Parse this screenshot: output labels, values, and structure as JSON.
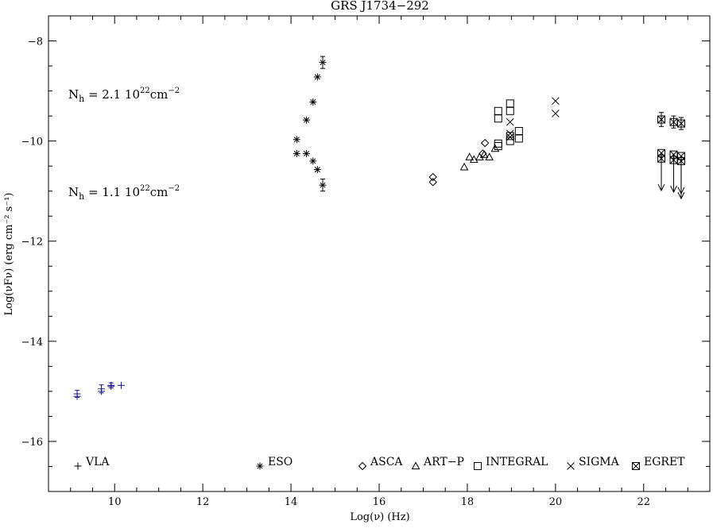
{
  "chart_data": {
    "type": "scatter",
    "title": "GRS J1734−292",
    "xlabel": "Log(ν)  (Hz)",
    "ylabel": "Log(νFν)  (erg cm⁻² s⁻¹)",
    "xlim": [
      8.5,
      23.5
    ],
    "ylim": [
      -17.0,
      -7.5
    ],
    "x_ticks": [
      10,
      12,
      14,
      16,
      18,
      20,
      22
    ],
    "x_tick_labels": [
      "10",
      "12",
      "14",
      "16",
      "18",
      "20",
      "22"
    ],
    "y_ticks": [
      -16,
      -14,
      -12,
      -10,
      -8
    ],
    "y_tick_labels": [
      "−16",
      "−14",
      "−12",
      "−10",
      "−8"
    ],
    "annotations": [
      {
        "text_main": "N",
        "text_sub": "h",
        "text_rest": " = 2.1  10",
        "text_sup": "22",
        "text_unit": "cm",
        "text_unit_sup": "−2",
        "x": 8.95,
        "y": -9.15
      },
      {
        "text_main": "N",
        "text_sub": "h",
        "text_rest": " = 1.1  10",
        "text_sup": "22",
        "text_unit": "cm",
        "text_unit_sup": "−2",
        "x": 8.95,
        "y": -11.1
      }
    ],
    "legend": [
      {
        "label": "VLA",
        "marker": "plus"
      },
      {
        "label": "ESO",
        "marker": "asterisk"
      },
      {
        "label": "ASCA",
        "marker": "diamond"
      },
      {
        "label": "ART−P",
        "marker": "triangle"
      },
      {
        "label": "INTEGRAL",
        "marker": "square"
      },
      {
        "label": "SIGMA",
        "marker": "cross"
      },
      {
        "label": "EGRET",
        "marker": "boxcross"
      }
    ],
    "legend_placement": "bottom",
    "series": [
      {
        "name": "VLA",
        "marker": "plus",
        "color": "#1a1a8a",
        "points": [
          {
            "x": 9.15,
            "y": -15.05,
            "yerr": 0.07
          },
          {
            "x": 9.15,
            "y": -15.1
          },
          {
            "x": 9.7,
            "y": -14.95,
            "yerr": 0.08
          },
          {
            "x": 9.7,
            "y": -15.0
          },
          {
            "x": 9.92,
            "y": -14.88,
            "yerr": 0.05
          },
          {
            "x": 9.92,
            "y": -14.9
          },
          {
            "x": 10.15,
            "y": -14.88
          }
        ]
      },
      {
        "name": "ESO",
        "marker": "asterisk",
        "color": "#000000",
        "points": [
          {
            "x": 14.13,
            "y": -9.97
          },
          {
            "x": 14.13,
            "y": -10.25
          },
          {
            "x": 14.35,
            "y": -9.58
          },
          {
            "x": 14.35,
            "y": -10.25
          },
          {
            "x": 14.5,
            "y": -9.22
          },
          {
            "x": 14.5,
            "y": -10.4
          },
          {
            "x": 14.6,
            "y": -8.72
          },
          {
            "x": 14.6,
            "y": -10.57
          },
          {
            "x": 14.72,
            "y": -8.43,
            "yerr": 0.12
          },
          {
            "x": 14.72,
            "y": -10.88,
            "yerr": 0.12
          }
        ]
      },
      {
        "name": "ASCA",
        "marker": "diamond",
        "color": "#000000",
        "points": [
          {
            "x": 17.22,
            "y": -10.72
          },
          {
            "x": 17.22,
            "y": -10.82
          },
          {
            "x": 18.35,
            "y": -10.25
          },
          {
            "x": 18.4,
            "y": -10.04
          }
        ]
      },
      {
        "name": "ART−P",
        "marker": "triangle",
        "color": "#000000",
        "points": [
          {
            "x": 17.93,
            "y": -10.52
          },
          {
            "x": 18.05,
            "y": -10.32
          },
          {
            "x": 18.15,
            "y": -10.37
          },
          {
            "x": 18.28,
            "y": -10.32
          },
          {
            "x": 18.38,
            "y": -10.27
          },
          {
            "x": 18.5,
            "y": -10.32
          },
          {
            "x": 18.63,
            "y": -10.15
          }
        ]
      },
      {
        "name": "INTEGRAL",
        "marker": "square",
        "color": "#000000",
        "points": [
          {
            "x": 18.7,
            "y": -10.05
          },
          {
            "x": 18.7,
            "y": -10.1
          },
          {
            "x": 18.7,
            "y": -9.4
          },
          {
            "x": 18.7,
            "y": -9.55
          },
          {
            "x": 18.97,
            "y": -9.25
          },
          {
            "x": 18.97,
            "y": -9.4
          },
          {
            "x": 18.97,
            "y": -9.9
          },
          {
            "x": 18.97,
            "y": -10.0
          },
          {
            "x": 19.17,
            "y": -9.8
          },
          {
            "x": 19.17,
            "y": -9.95
          }
        ]
      },
      {
        "name": "SIGMA",
        "marker": "cross",
        "color": "#000000",
        "points": [
          {
            "x": 18.97,
            "y": -9.62
          },
          {
            "x": 18.97,
            "y": -9.85
          },
          {
            "x": 18.97,
            "y": -9.92
          },
          {
            "x": 20.0,
            "y": -9.2
          },
          {
            "x": 20.0,
            "y": -9.45
          }
        ]
      },
      {
        "name": "EGRET",
        "marker": "boxcross",
        "color": "#000000",
        "points": [
          {
            "x": 22.4,
            "y": -9.57,
            "yerr": 0.14
          },
          {
            "x": 22.68,
            "y": -9.62,
            "yerr": 0.12
          },
          {
            "x": 22.85,
            "y": -9.65,
            "yerr": 0.12
          },
          {
            "x": 22.4,
            "y": -10.24,
            "upper_limit": true
          },
          {
            "x": 22.4,
            "y": -10.35
          },
          {
            "x": 22.68,
            "y": -10.27,
            "upper_limit": true
          },
          {
            "x": 22.68,
            "y": -10.38
          },
          {
            "x": 22.85,
            "y": -10.3,
            "upper_limit": true
          },
          {
            "x": 22.85,
            "y": -10.4,
            "upper_limit": true
          }
        ]
      }
    ]
  }
}
